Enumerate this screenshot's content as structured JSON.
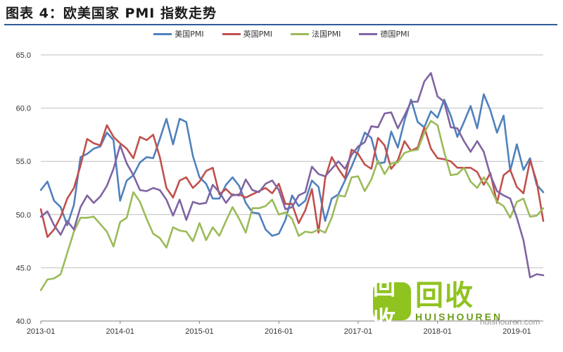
{
  "figure": {
    "title": "图表 4：欧美国家 PMI 指数走势"
  },
  "colors": {
    "us": "#4f81bd",
    "uk": "#c0504d",
    "fr": "#9bbb59",
    "de": "#8064a2",
    "grid": "#bfbfbf",
    "rule": "#2f5d9a"
  },
  "watermark": {
    "logo": "回收",
    "cn": "回收",
    "en": "HUISHOUREN",
    "url": "huishouren.com"
  },
  "chart_data": {
    "type": "line",
    "title": "",
    "xlabel": "",
    "ylabel": "",
    "ylim": [
      40.0,
      65.0
    ],
    "yticks": [
      "40.0",
      "45.0",
      "50.0",
      "55.0",
      "60.0",
      "65.0"
    ],
    "x_start": "2013-01",
    "x_tick_labels": [
      "2013-01",
      "2014-01",
      "2015-01",
      "2016-01",
      "2017-01",
      "2018-01",
      "2019-01"
    ],
    "grid": true,
    "legend": "top-center",
    "series": [
      {
        "name": "美国PMI",
        "color": "#4f81bd",
        "values": [
          52.3,
          53.1,
          51.3,
          50.7,
          49.0,
          50.9,
          55.4,
          55.7,
          56.2,
          56.4,
          57.7,
          57.0,
          51.3,
          53.2,
          53.7,
          54.9,
          55.4,
          55.3,
          57.1,
          59.0,
          56.6,
          59.0,
          58.7,
          55.5,
          53.5,
          52.9,
          51.5,
          51.5,
          52.8,
          53.5,
          52.7,
          51.1,
          50.2,
          50.1,
          48.6,
          48.0,
          48.2,
          49.5,
          51.8,
          50.8,
          51.3,
          53.2,
          52.6,
          49.4,
          51.5,
          51.9,
          53.2,
          54.5,
          56.0,
          57.7,
          57.2,
          54.8,
          54.9,
          57.8,
          56.3,
          58.8,
          60.8,
          58.7,
          58.2,
          59.7,
          59.1,
          60.8,
          59.3,
          57.3,
          58.7,
          60.2,
          58.1,
          61.3,
          59.8,
          57.7,
          59.3,
          54.1,
          56.6,
          54.2,
          55.3,
          52.8,
          52.1
        ]
      },
      {
        "name": "英国PMI",
        "color": "#c0504d",
        "values": [
          50.5,
          47.9,
          48.6,
          49.8,
          51.5,
          52.5,
          54.6,
          57.1,
          56.7,
          56.5,
          58.4,
          57.3,
          56.7,
          56.2,
          55.3,
          57.3,
          57.0,
          57.5,
          55.4,
          52.5,
          51.6,
          53.2,
          53.5,
          52.5,
          53.1,
          54.1,
          54.4,
          51.9,
          52.4,
          51.8,
          51.9,
          51.6,
          51.9,
          52.2,
          52.5,
          52.0,
          52.9,
          51.0,
          51.0,
          49.2,
          50.4,
          52.4,
          48.3,
          53.4,
          55.4,
          54.3,
          53.4,
          56.1,
          55.7,
          54.7,
          54.3,
          57.2,
          56.5,
          54.3,
          55.1,
          56.9,
          56.0,
          56.3,
          58.2,
          56.2,
          55.3,
          55.2,
          55.0,
          54.4,
          54.4,
          54.4,
          54.0,
          52.8,
          53.9,
          51.1,
          53.7,
          54.2,
          52.6,
          52.0,
          55.1,
          53.1,
          49.4
        ]
      },
      {
        "name": "法国PMI",
        "color": "#9bbb59",
        "values": [
          42.9,
          43.9,
          44.0,
          44.4,
          46.4,
          48.4,
          49.7,
          49.7,
          49.8,
          49.1,
          48.4,
          47.0,
          49.3,
          49.7,
          52.1,
          51.2,
          49.6,
          48.2,
          47.8,
          46.9,
          48.8,
          48.5,
          48.4,
          47.5,
          49.2,
          47.6,
          48.8,
          48.0,
          49.4,
          50.7,
          49.6,
          48.3,
          50.6,
          50.6,
          50.8,
          51.4,
          50.0,
          50.2,
          49.6,
          48.0,
          48.4,
          48.3,
          48.6,
          48.3,
          49.7,
          51.8,
          51.7,
          53.5,
          53.6,
          52.2,
          53.3,
          55.1,
          53.8,
          54.8,
          54.9,
          55.8,
          56.0,
          56.1,
          57.7,
          58.8,
          58.4,
          55.9,
          53.7,
          53.8,
          54.4,
          53.1,
          52.5,
          53.5,
          52.5,
          51.2,
          50.8,
          49.7,
          51.2,
          51.5,
          49.8,
          49.9,
          50.6
        ]
      },
      {
        "name": "德国PMI",
        "color": "#8064a2",
        "values": [
          49.8,
          50.3,
          49.0,
          48.1,
          49.4,
          48.6,
          50.7,
          51.8,
          51.1,
          51.7,
          52.7,
          54.3,
          56.5,
          54.8,
          53.7,
          52.3,
          52.2,
          52.5,
          52.3,
          51.4,
          49.9,
          51.4,
          49.5,
          51.2,
          51.0,
          51.1,
          52.8,
          52.1,
          51.1,
          51.9,
          51.8,
          53.3,
          52.3,
          52.1,
          52.9,
          53.2,
          52.3,
          50.5,
          50.7,
          51.8,
          52.1,
          54.5,
          53.8,
          53.6,
          54.3,
          55.0,
          54.3,
          55.6,
          56.4,
          56.8,
          58.3,
          58.2,
          59.5,
          59.6,
          58.1,
          59.3,
          60.6,
          60.6,
          62.5,
          63.3,
          61.1,
          60.6,
          58.2,
          58.1,
          56.9,
          55.9,
          56.9,
          55.9,
          53.7,
          52.2,
          51.8,
          51.5,
          49.7,
          47.6,
          44.1,
          44.4,
          44.3
        ]
      }
    ]
  }
}
